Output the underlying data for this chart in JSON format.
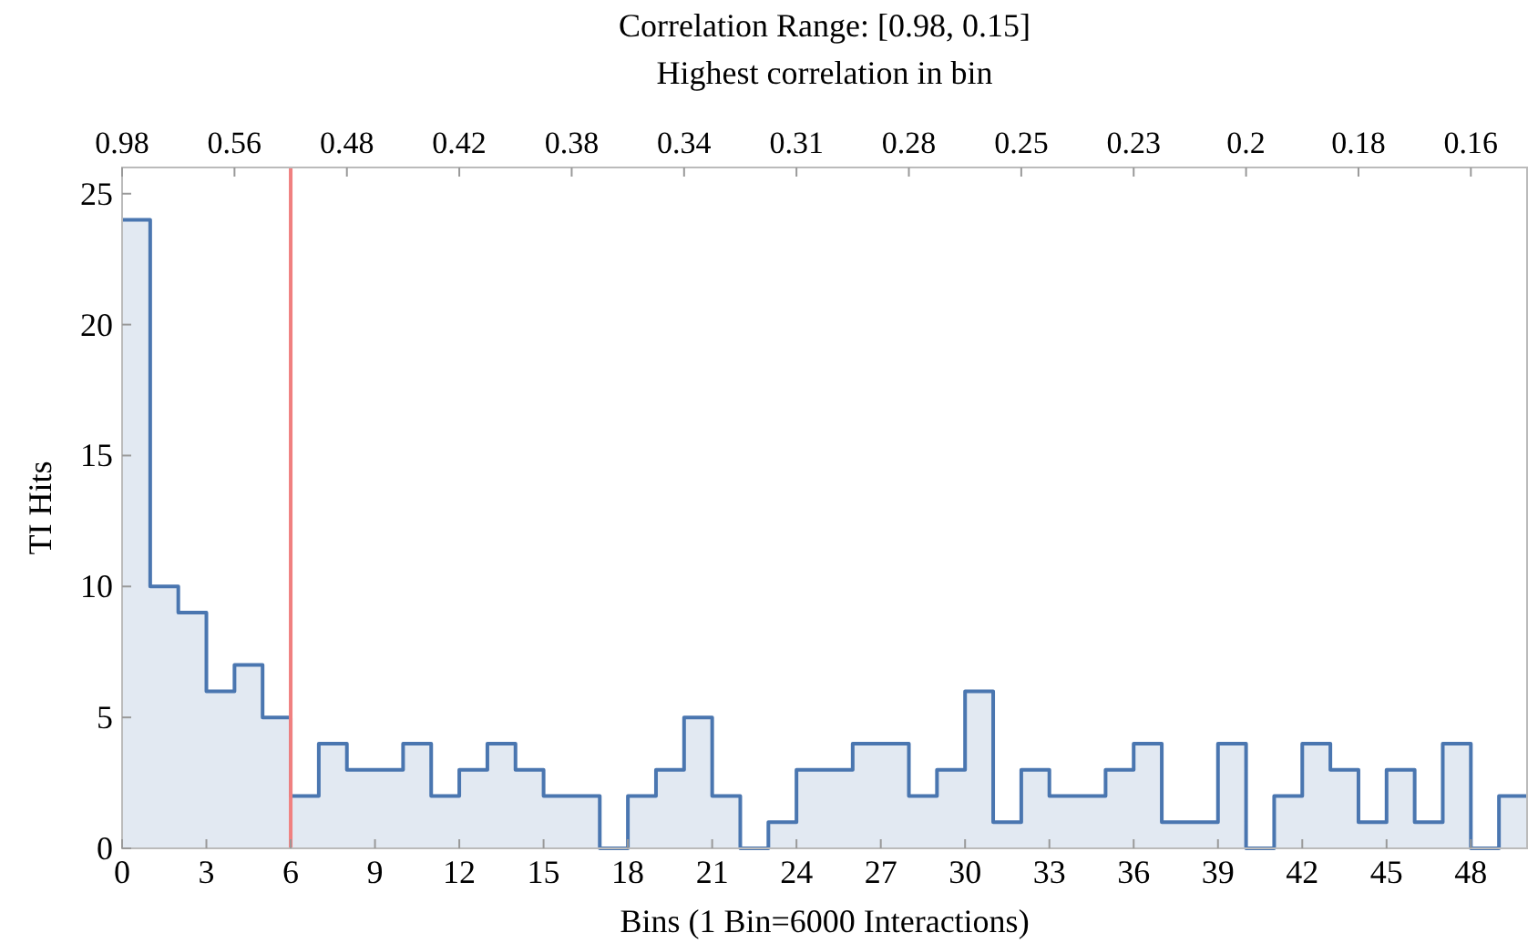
{
  "chart_data": {
    "type": "histogram",
    "title": "Correlation Range: [0.98, 0.15]",
    "x2label": "Highest correlation in bin",
    "xlabel": "Bins (1 Bin=6000 Interactions)",
    "ylabel": "TI Hits",
    "bins": [
      0,
      1,
      2,
      3,
      4,
      5,
      6,
      7,
      8,
      9,
      10,
      11,
      12,
      13,
      14,
      15,
      16,
      17,
      18,
      19,
      20,
      21,
      22,
      23,
      24,
      25,
      26,
      27,
      28,
      29,
      30,
      31,
      32,
      33,
      34,
      35,
      36,
      37,
      38,
      39,
      40,
      41,
      42,
      43,
      44,
      45,
      46,
      47,
      48,
      49,
      50
    ],
    "values": [
      24,
      10,
      9,
      6,
      7,
      5,
      2,
      4,
      3,
      3,
      4,
      2,
      3,
      4,
      3,
      2,
      2,
      0,
      2,
      3,
      5,
      2,
      0,
      1,
      3,
      3,
      4,
      4,
      2,
      3,
      6,
      1,
      3,
      2,
      2,
      3,
      4,
      1,
      1,
      4,
      0,
      2,
      4,
      3,
      1,
      3,
      1,
      4,
      0,
      2
    ],
    "color": "#4a76b0",
    "xlim": [
      0,
      50
    ],
    "xticks": [
      0,
      3,
      6,
      9,
      12,
      15,
      18,
      21,
      24,
      27,
      30,
      33,
      36,
      39,
      42,
      45,
      48
    ],
    "annotations": [
      "0.98",
      {
        "text": "0.56",
        "x": 4
      },
      {
        "text": "0.48",
        "x": 8
      },
      {
        "text": "0.42",
        "x": 12
      },
      {
        "text": "0.38",
        "x": 16
      },
      {
        "text": "0.34",
        "x": 20
      },
      {
        "text": "0.31",
        "x": 24
      },
      {
        "text": "0.28",
        "x": 28
      },
      {
        "text": "0.25",
        "x": 32
      },
      {
        "text": "0.23",
        "x": 36
      },
      {
        "text": "0.2",
        "x": 40
      },
      {
        "text": "0.18",
        "x": 44
      },
      {
        "text": "0.16",
        "x": 48
      }
    ],
    "ylim": [
      0,
      26
    ],
    "yticks": [
      0,
      5,
      10,
      15,
      20,
      25
    ],
    "ref_lines": [
      {
        "axis": "x",
        "value": 6,
        "color": "#f08080"
      }
    ],
    "grid": false
  }
}
